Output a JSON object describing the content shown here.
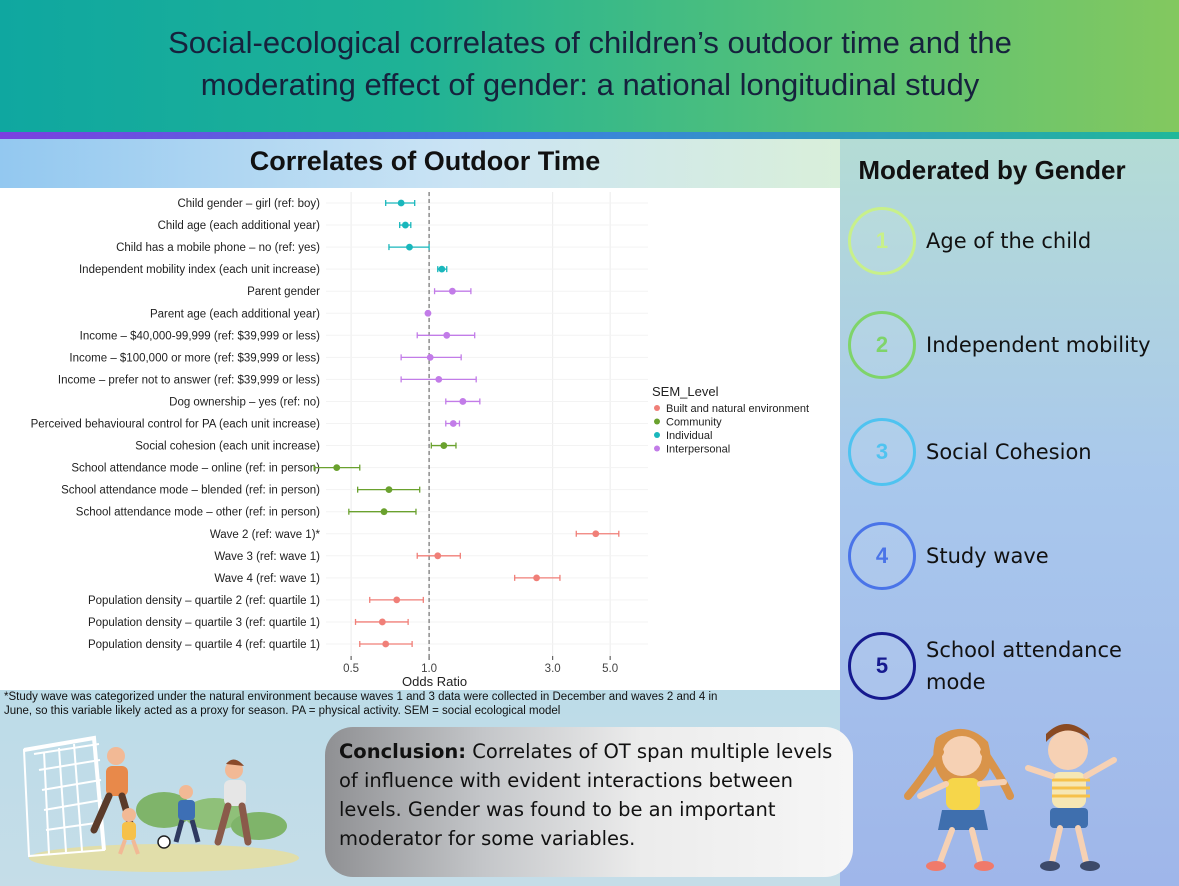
{
  "header": {
    "title_line1": "Social-ecological correlates of children’s outdoor time and the",
    "title_line2": "moderating effect of gender: a national longitudinal study"
  },
  "chart_title": "Correlates of Outdoor Time",
  "footnote_line1": "*Study wave was categorized under the natural environment because waves 1 and 3 data were collected in December and waves 2 and 4 in",
  "footnote_line2": "June, so this variable likely acted as a proxy for season. PA = physical activity. SEM = social ecological model",
  "moderated": {
    "title": "Moderated by Gender",
    "items": [
      {
        "num": "1",
        "label": "Age of the child",
        "color": "#c8f08a"
      },
      {
        "num": "2",
        "label": "Independent mobility",
        "color": "#7fd46a"
      },
      {
        "num": "3",
        "label": "Social Cohesion",
        "color": "#4fc3f0"
      },
      {
        "num": "4",
        "label": "Study wave",
        "color": "#4a74e8"
      },
      {
        "num": "5",
        "label": "School attendance mode",
        "color": "#161a8f"
      }
    ]
  },
  "conclusion": {
    "bold": "Conclusion:",
    "text": " Correlates of OT span multiple levels of influence with evident interactions between levels. Gender was found to be an important moderator for some variables."
  },
  "chart_data": {
    "type": "scatter",
    "subtype": "forest-plot",
    "title": "Correlates of Outdoor Time",
    "xlabel": "Odds Ratio",
    "ylabel": "",
    "x_scale": "log",
    "xlim": [
      0.4,
      7.0
    ],
    "xticks": [
      0.5,
      1.0,
      3.0,
      5.0
    ],
    "xtick_labels": [
      "0.5",
      "1.0",
      "3.0",
      "5.0"
    ],
    "reference_line": 1.0,
    "grid": true,
    "legend": {
      "title": "SEM_Level",
      "placement": "right",
      "entries": [
        {
          "name": "Built and natural environment",
          "color": "#f07f78"
        },
        {
          "name": "Community",
          "color": "#6aa12e"
        },
        {
          "name": "Individual",
          "color": "#19b7bc"
        },
        {
          "name": "Interpersonal",
          "color": "#c27ce8"
        }
      ]
    },
    "rows": [
      {
        "label": "Child gender – girl (ref: boy)",
        "or": 0.78,
        "lo": 0.68,
        "hi": 0.88,
        "level": "Individual"
      },
      {
        "label": "Child age (each additional year)",
        "or": 0.81,
        "lo": 0.77,
        "hi": 0.85,
        "level": "Individual"
      },
      {
        "label": "Child has a mobile phone – no (ref: yes)",
        "or": 0.84,
        "lo": 0.7,
        "hi": 1.0,
        "level": "Individual"
      },
      {
        "label": "Independent mobility index (each unit increase)",
        "or": 1.12,
        "lo": 1.08,
        "hi": 1.17,
        "level": "Individual"
      },
      {
        "label": "Parent gender",
        "or": 1.23,
        "lo": 1.05,
        "hi": 1.45,
        "level": "Interpersonal"
      },
      {
        "label": "Parent age (each additional year)",
        "or": 0.99,
        "lo": 0.98,
        "hi": 1.0,
        "level": "Interpersonal"
      },
      {
        "label": "Income – $40,000-99,999 (ref: $39,999 or less)",
        "or": 1.17,
        "lo": 0.9,
        "hi": 1.5,
        "level": "Interpersonal"
      },
      {
        "label": "Income – $100,000 or more (ref: $39,999 or less)",
        "or": 1.01,
        "lo": 0.78,
        "hi": 1.33,
        "level": "Interpersonal"
      },
      {
        "label": "Income – prefer not to answer (ref: $39,999 or less)",
        "or": 1.09,
        "lo": 0.78,
        "hi": 1.52,
        "level": "Interpersonal"
      },
      {
        "label": "Dog ownership – yes (ref: no)",
        "or": 1.35,
        "lo": 1.16,
        "hi": 1.57,
        "level": "Interpersonal"
      },
      {
        "label": "Perceived behavioural control for PA (each unit increase)",
        "or": 1.24,
        "lo": 1.16,
        "hi": 1.31,
        "level": "Interpersonal"
      },
      {
        "label": "Social cohesion (each unit increase)",
        "or": 1.14,
        "lo": 1.02,
        "hi": 1.27,
        "level": "Community"
      },
      {
        "label": "School attendance mode – online (ref: in person)",
        "or": 0.44,
        "lo": 0.36,
        "hi": 0.54,
        "level": "Community"
      },
      {
        "label": "School attendance mode – blended (ref: in person)",
        "or": 0.7,
        "lo": 0.53,
        "hi": 0.92,
        "level": "Community"
      },
      {
        "label": "School attendance mode – other (ref: in person)",
        "or": 0.67,
        "lo": 0.49,
        "hi": 0.89,
        "level": "Community"
      },
      {
        "label": "Wave 2 (ref: wave 1)*",
        "or": 4.4,
        "lo": 3.7,
        "hi": 5.4,
        "level": "Built and natural environment"
      },
      {
        "label": "Wave 3 (ref: wave 1)",
        "or": 1.08,
        "lo": 0.9,
        "hi": 1.32,
        "level": "Built and natural environment"
      },
      {
        "label": "Wave 4 (ref: wave 1)",
        "or": 2.6,
        "lo": 2.14,
        "hi": 3.2,
        "level": "Built and natural environment"
      },
      {
        "label": "Population density – quartile 2 (ref: quartile 1)",
        "or": 0.75,
        "lo": 0.59,
        "hi": 0.95,
        "level": "Built and natural environment"
      },
      {
        "label": "Population density – quartile 3 (ref: quartile 1)",
        "or": 0.66,
        "lo": 0.52,
        "hi": 0.83,
        "level": "Built and natural environment"
      },
      {
        "label": "Population density – quartile 4 (ref: quartile 1)",
        "or": 0.68,
        "lo": 0.54,
        "hi": 0.86,
        "level": "Built and natural environment"
      }
    ]
  }
}
